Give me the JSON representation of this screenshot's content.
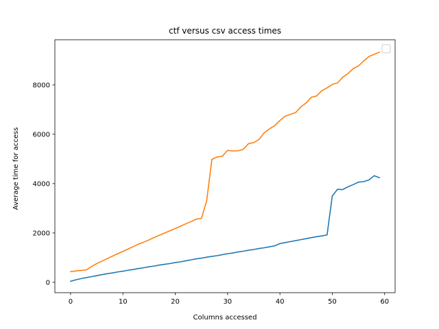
{
  "chart_data": {
    "type": "line",
    "title": "ctf versus csv access times",
    "xlabel": "Columns accessed",
    "ylabel": "Average time for access",
    "xlim": [
      -3,
      62
    ],
    "ylim": [
      -420,
      9830
    ],
    "xticks": [
      0,
      10,
      20,
      30,
      40,
      50,
      60
    ],
    "yticks": [
      0,
      2000,
      4000,
      6000,
      8000
    ],
    "grid": false,
    "legend": "upper right (empty)",
    "x": [
      0,
      1,
      2,
      3,
      4,
      5,
      6,
      7,
      8,
      9,
      10,
      11,
      12,
      13,
      14,
      15,
      16,
      17,
      18,
      19,
      20,
      21,
      22,
      23,
      24,
      25,
      26,
      27,
      28,
      29,
      30,
      31,
      32,
      33,
      34,
      35,
      36,
      37,
      38,
      39,
      40,
      41,
      42,
      43,
      44,
      45,
      46,
      47,
      48,
      49,
      50,
      51,
      52,
      53,
      54,
      55,
      56,
      57,
      58,
      59
    ],
    "series": [
      {
        "color": "#1f77b4",
        "values": [
          40,
          100,
          150,
          190,
          230,
          270,
          310,
          350,
          380,
          420,
          450,
          490,
          520,
          560,
          590,
          630,
          660,
          700,
          730,
          760,
          800,
          830,
          870,
          910,
          950,
          980,
          1020,
          1050,
          1080,
          1120,
          1160,
          1190,
          1230,
          1260,
          1300,
          1330,
          1370,
          1400,
          1440,
          1480,
          1570,
          1610,
          1650,
          1690,
          1730,
          1770,
          1810,
          1850,
          1880,
          1920,
          3500,
          3770,
          3760,
          3870,
          3960,
          4060,
          4080,
          4150,
          4320,
          4240
        ]
      },
      {
        "color": "#ff7f0e",
        "values": [
          430,
          460,
          480,
          500,
          640,
          760,
          860,
          960,
          1060,
          1160,
          1250,
          1350,
          1450,
          1550,
          1630,
          1720,
          1820,
          1910,
          2000,
          2090,
          2180,
          2270,
          2370,
          2460,
          2560,
          2590,
          3300,
          4980,
          5080,
          5110,
          5350,
          5320,
          5330,
          5390,
          5620,
          5660,
          5790,
          6060,
          6220,
          6350,
          6560,
          6730,
          6810,
          6880,
          7110,
          7270,
          7500,
          7550,
          7770,
          7880,
          8020,
          8080,
          8310,
          8460,
          8660,
          8770,
          8970,
          9150,
          9240,
          9330
        ]
      }
    ]
  }
}
